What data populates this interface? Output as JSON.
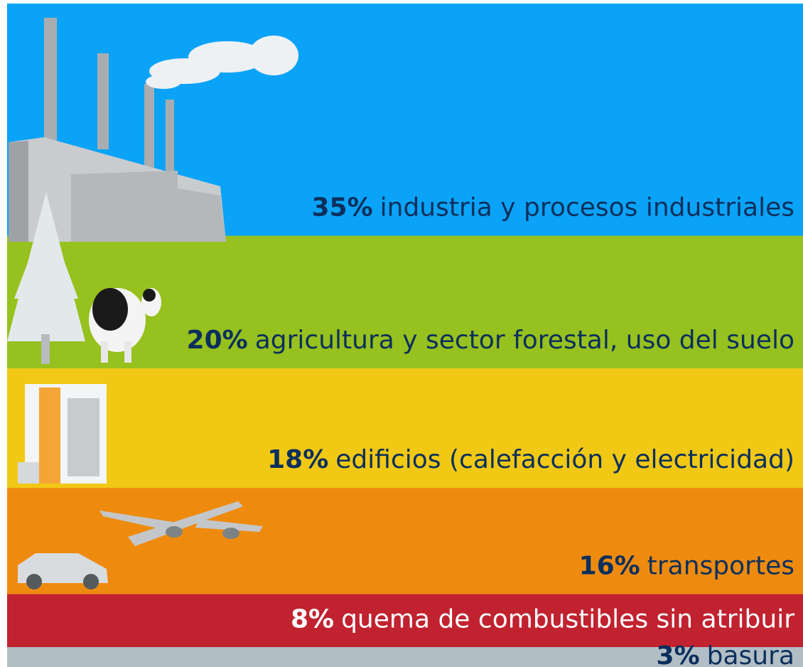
{
  "chart_data": {
    "type": "stacked-band",
    "categories": [
      "industria y procesos industriales",
      "agricultura y sector forestal, uso del suelo",
      "edificios (calefacción y electricidad)",
      "transportes",
      "quema de combustibles sin atribuir",
      "basura"
    ],
    "values": [
      35,
      20,
      18,
      16,
      8,
      3
    ],
    "value_labels": [
      "35%",
      "20%",
      "18%",
      "16%",
      "8%",
      "3%"
    ],
    "colors": [
      "#0ba3f7",
      "#96c11e",
      "#f1c814",
      "#ee8b0f",
      "#c1222f",
      "#b2bec6"
    ],
    "label_colors": [
      "#0b2f5c",
      "#0b2f5c",
      "#0b2f5c",
      "#0b2f5c",
      "#ffffff",
      "#0b2f5c"
    ]
  }
}
